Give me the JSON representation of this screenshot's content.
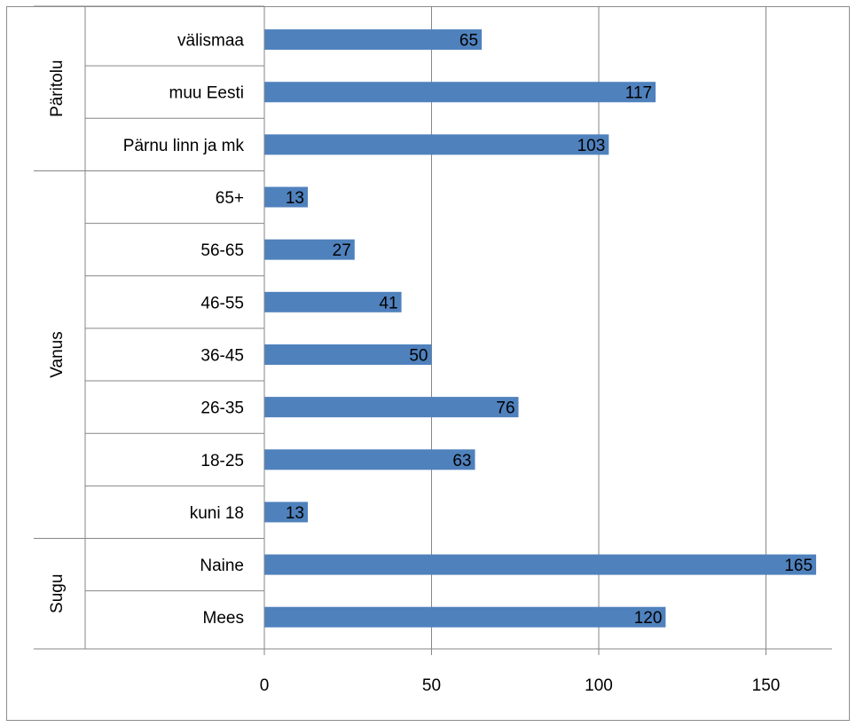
{
  "chart_data": {
    "type": "bar",
    "orientation": "horizontal",
    "groups": [
      {
        "name": "Päritolu",
        "categories": [
          "välismaa",
          "muu Eesti",
          "Pärnu linn ja mk"
        ],
        "values": [
          65,
          117,
          103
        ]
      },
      {
        "name": "Vanus",
        "categories": [
          "65+",
          "56-65",
          "46-55",
          "36-45",
          "26-35",
          "18-25",
          "kuni 18"
        ],
        "values": [
          13,
          27,
          41,
          50,
          76,
          63,
          13
        ]
      },
      {
        "name": "Sugu",
        "categories": [
          "Naine",
          "Mees"
        ],
        "values": [
          165,
          120
        ]
      }
    ],
    "xlim": [
      0,
      165
    ],
    "x_ticks": [
      0,
      50,
      100,
      150
    ],
    "grid": true,
    "data_labels": true,
    "bar_color": "#4f81bd",
    "title": "",
    "xlabel": "",
    "ylabel": ""
  }
}
